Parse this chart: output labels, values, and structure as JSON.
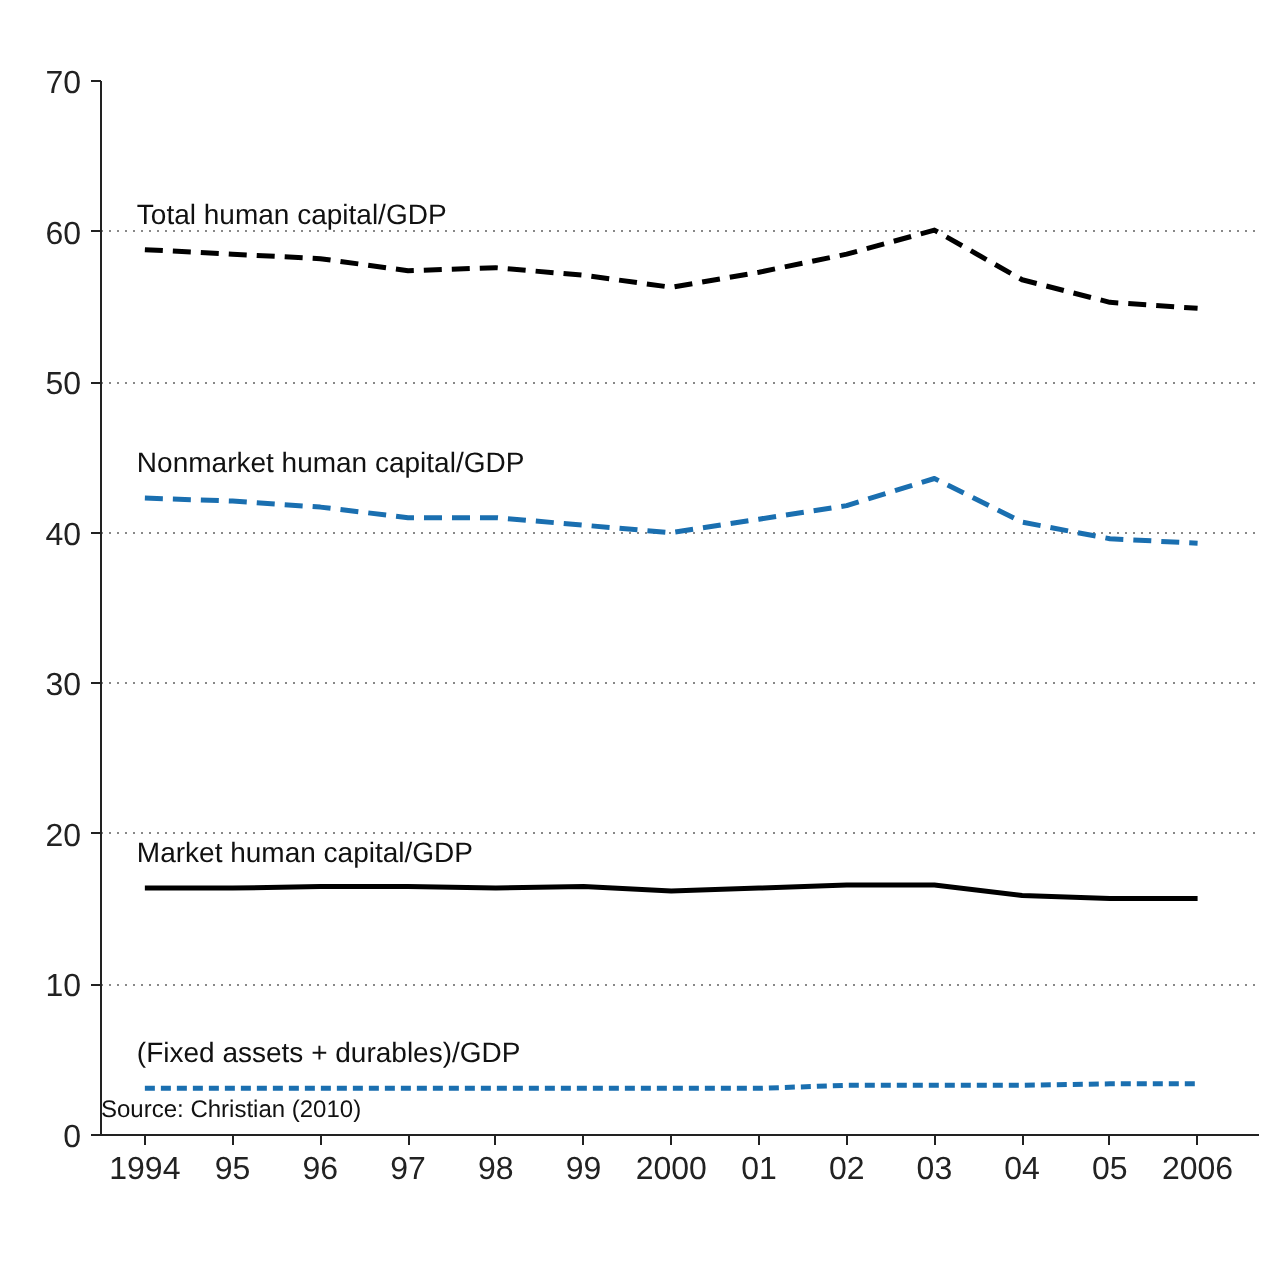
{
  "chart_data": {
    "type": "line",
    "x": [
      1994,
      1995,
      1996,
      1997,
      1998,
      1999,
      2000,
      2001,
      2002,
      2003,
      2004,
      2005,
      2006
    ],
    "xlim": [
      1993.5,
      2006.7
    ],
    "xticks": [
      {
        "value": 1994,
        "label": "1994"
      },
      {
        "value": 1995,
        "label": "95"
      },
      {
        "value": 1996,
        "label": "96"
      },
      {
        "value": 1997,
        "label": "97"
      },
      {
        "value": 1998,
        "label": "98"
      },
      {
        "value": 1999,
        "label": "99"
      },
      {
        "value": 2000,
        "label": "2000"
      },
      {
        "value": 2001,
        "label": "01"
      },
      {
        "value": 2002,
        "label": "02"
      },
      {
        "value": 2003,
        "label": "03"
      },
      {
        "value": 2004,
        "label": "04"
      },
      {
        "value": 2005,
        "label": "05"
      },
      {
        "value": 2006,
        "label": "2006"
      }
    ],
    "ylim": [
      0,
      70
    ],
    "yticks": [
      0,
      10,
      20,
      30,
      40,
      50,
      60,
      70
    ],
    "grid": "y",
    "legend": false,
    "marker": "none",
    "series": [
      {
        "name": "Total human capital/GDP",
        "color": "#000000",
        "line_style": "dashed",
        "values": [
          58.8,
          58.5,
          58.2,
          57.4,
          57.6,
          57.1,
          56.3,
          57.3,
          58.5,
          60.1,
          56.8,
          55.3,
          54.9
        ]
      },
      {
        "name": "Nonmarket human capital/GDP",
        "color": "#1a6fb0",
        "line_style": "dashed",
        "values": [
          42.3,
          42.1,
          41.7,
          41.0,
          41.0,
          40.5,
          40.0,
          40.9,
          41.8,
          43.6,
          40.7,
          39.6,
          39.3
        ]
      },
      {
        "name": "Market human capital/GDP",
        "color": "#000000",
        "line_style": "solid",
        "values": [
          16.4,
          16.4,
          16.5,
          16.5,
          16.4,
          16.5,
          16.2,
          16.4,
          16.6,
          16.6,
          15.9,
          15.7,
          15.7
        ]
      },
      {
        "name": "(Fixed assets + durables)/GDP",
        "color": "#1a6fb0",
        "line_style": "dotted",
        "values": [
          3.1,
          3.1,
          3.1,
          3.1,
          3.1,
          3.1,
          3.1,
          3.1,
          3.3,
          3.3,
          3.3,
          3.4,
          3.4
        ]
      }
    ],
    "annotations": [
      "Source: Christian (2010)"
    ]
  }
}
